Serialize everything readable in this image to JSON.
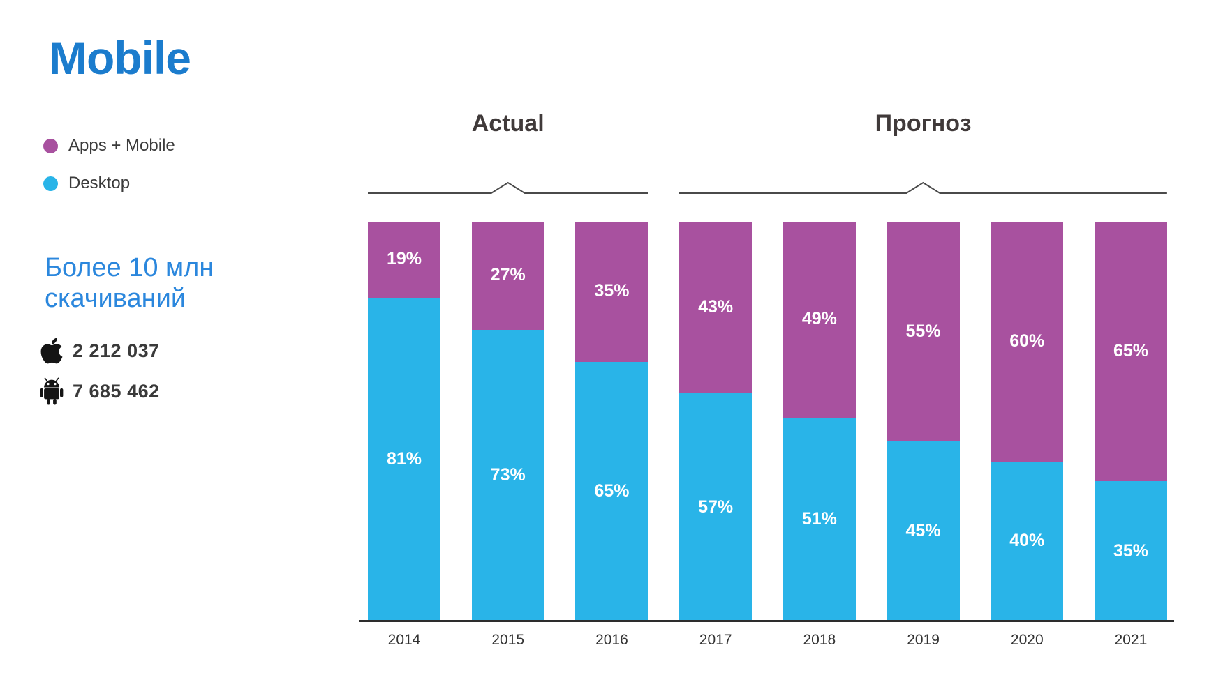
{
  "title": "Mobile",
  "title_color": "#1b7ccd",
  "note": {
    "text": "Более 10 млн скачиваний",
    "color": "#2b87dd"
  },
  "downloads": [
    {
      "icon": "apple-icon",
      "platform": "apple",
      "value": "2 212 037"
    },
    {
      "icon": "android-icon",
      "platform": "android",
      "value": "7 685 462"
    }
  ],
  "chart_data": {
    "type": "bar",
    "stacked": true,
    "value_format": "percent",
    "title": "",
    "xlabel": "",
    "ylabel": "",
    "ylim": [
      0,
      100
    ],
    "grid": false,
    "legend_position": "left",
    "categories": [
      "2014",
      "2015",
      "2016",
      "2017",
      "2018",
      "2019",
      "2020",
      "2021"
    ],
    "series": [
      {
        "name": "Apps + Mobile",
        "color": "#a8519f",
        "values": [
          19,
          27,
          35,
          43,
          49,
          55,
          60,
          65
        ],
        "labels": [
          "19%",
          "27%",
          "35%",
          "43%",
          "49%",
          "55%",
          "60%",
          "65%"
        ]
      },
      {
        "name": "Desktop",
        "color": "#29b4e8",
        "values": [
          81,
          73,
          65,
          57,
          51,
          45,
          40,
          35
        ],
        "labels": [
          "81%",
          "73%",
          "65%",
          "57%",
          "51%",
          "45%",
          "40%",
          "35%"
        ]
      }
    ],
    "groups": [
      {
        "label": "Actual",
        "categories": [
          "2014",
          "2015",
          "2016"
        ]
      },
      {
        "label": "Прогноз",
        "categories": [
          "2017",
          "2018",
          "2019",
          "2020",
          "2021"
        ]
      }
    ]
  }
}
